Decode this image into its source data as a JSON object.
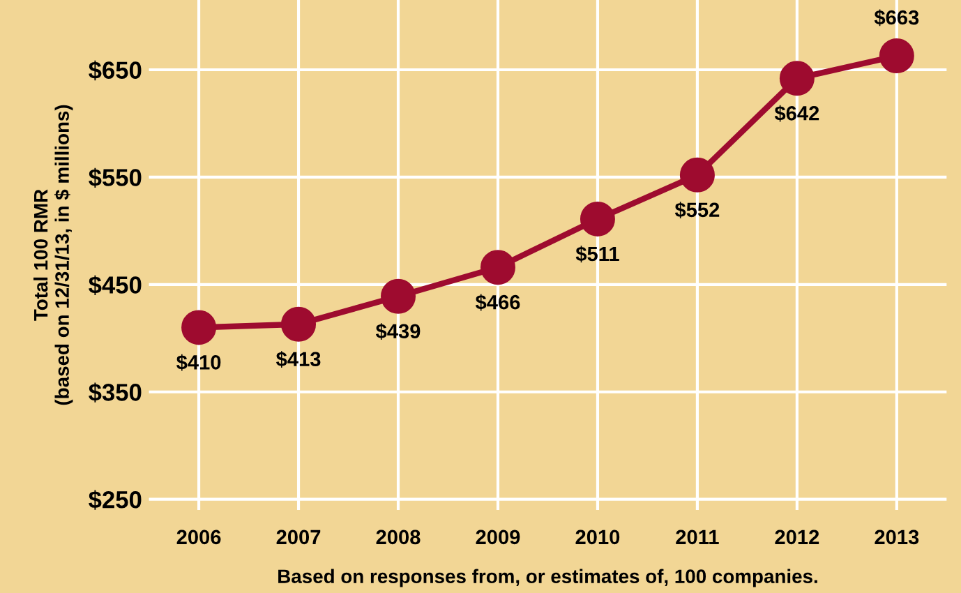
{
  "chart_data": {
    "type": "line",
    "ylabel": "Total 100 RMR\n(based on 12/31/13, in $ millions)",
    "categories": [
      "2006",
      "2007",
      "2008",
      "2009",
      "2010",
      "2011",
      "2012",
      "2013"
    ],
    "series": [
      {
        "color": "#9e0b2f",
        "values": [
          410,
          413,
          439,
          466,
          511,
          552,
          642,
          663
        ],
        "value_labels": [
          "$410",
          "$413",
          "$439",
          "$466",
          "$511",
          "$552",
          "$642",
          "$663"
        ]
      }
    ],
    "ylim": [
      240,
      715
    ],
    "yticks": [
      {
        "value": 250,
        "label": "$250"
      },
      {
        "value": 350,
        "label": "$350"
      },
      {
        "value": 450,
        "label": "$450"
      },
      {
        "value": 550,
        "label": "$550"
      },
      {
        "value": 650,
        "label": "$650"
      }
    ],
    "grid": true,
    "marker": "circle",
    "line_style": "solid",
    "annotations": [
      "Based on responses from, or estimates of, 100 companies."
    ]
  }
}
